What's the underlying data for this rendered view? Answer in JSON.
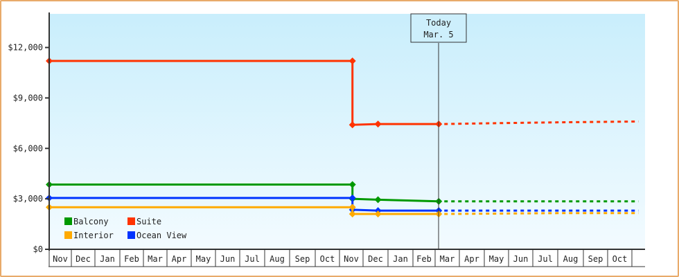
{
  "chart_data": {
    "type": "line",
    "title": "",
    "xlabel": "",
    "ylabel": "",
    "ylim": [
      0,
      14000
    ],
    "grid": false,
    "legend_position": "bottom-left",
    "y_ticks": [
      {
        "value": 0,
        "label": "$0"
      },
      {
        "value": 3000,
        "label": "$3,000"
      },
      {
        "value": 6000,
        "label": "$6,000"
      },
      {
        "value": 9000,
        "label": "$9,000"
      },
      {
        "value": 12000,
        "label": "$12,000"
      }
    ],
    "categories": [
      "Nov",
      "Dec",
      "Jan",
      "Feb",
      "Mar",
      "Apr",
      "May",
      "Jun",
      "Jul",
      "Aug",
      "Sep",
      "Oct",
      "Nov",
      "Dec",
      "Jan",
      "Feb",
      "Mar",
      "Apr",
      "May",
      "Jun",
      "Jul",
      "Aug",
      "Sep",
      "Oct"
    ],
    "today": {
      "label_line1": "Today",
      "label_line2": "Mar. 5",
      "x": 16.15
    },
    "series": [
      {
        "name": "Suite",
        "color": "#ff3300",
        "points": [
          [
            0,
            11200
          ],
          [
            12.55,
            11200
          ],
          [
            12.55,
            7400
          ],
          [
            13.6,
            7450
          ],
          [
            16.15,
            7450
          ]
        ],
        "forecast": [
          [
            16.15,
            7450
          ],
          [
            18.5,
            7500
          ],
          [
            21,
            7550
          ],
          [
            24.5,
            7600
          ]
        ]
      },
      {
        "name": "Balcony",
        "color": "#009900",
        "points": [
          [
            0,
            3850
          ],
          [
            12.55,
            3850
          ],
          [
            12.55,
            3000
          ],
          [
            13.6,
            2950
          ],
          [
            16.15,
            2850
          ]
        ],
        "forecast": [
          [
            16.15,
            2850
          ],
          [
            24.5,
            2850
          ]
        ]
      },
      {
        "name": "Ocean View",
        "color": "#0033ff",
        "points": [
          [
            0,
            3050
          ],
          [
            12.55,
            3050
          ],
          [
            12.55,
            2350
          ],
          [
            13.6,
            2300
          ],
          [
            16.15,
            2300
          ]
        ],
        "forecast": [
          [
            16.15,
            2300
          ],
          [
            24.5,
            2300
          ]
        ]
      },
      {
        "name": "Interior",
        "color": "#ffaa00",
        "points": [
          [
            0,
            2500
          ],
          [
            12.55,
            2500
          ],
          [
            12.55,
            2100
          ],
          [
            13.6,
            2100
          ],
          [
            16.15,
            2100
          ]
        ],
        "forecast": [
          [
            16.15,
            2100
          ],
          [
            21,
            2150
          ],
          [
            24.5,
            2150
          ]
        ]
      }
    ],
    "legend": [
      {
        "name": "Balcony",
        "color": "#009900"
      },
      {
        "name": "Suite",
        "color": "#ff3300"
      },
      {
        "name": "Interior",
        "color": "#ffaa00"
      },
      {
        "name": "Ocean View",
        "color": "#0033ff"
      }
    ]
  }
}
